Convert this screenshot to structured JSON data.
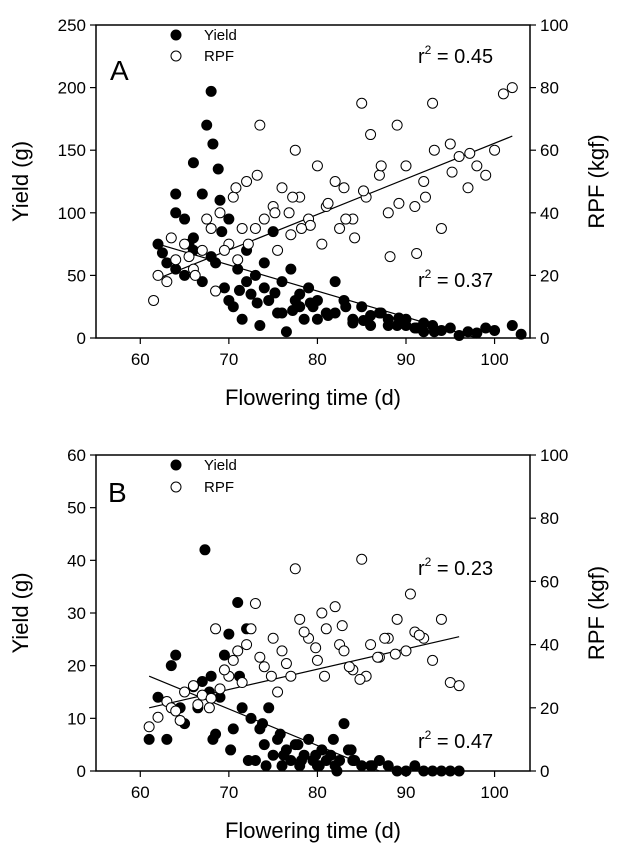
{
  "chart_data": [
    {
      "type": "scatter",
      "panel_label": "A",
      "xlabel": "Flowering time (d)",
      "ylabel": "Yield (g)",
      "y2label": "RPF (kgf)",
      "xlim": [
        55,
        104
      ],
      "ylim": [
        0,
        250
      ],
      "y2lim": [
        0,
        100
      ],
      "xticks": [
        60,
        70,
        80,
        90,
        100
      ],
      "yticks": [
        0,
        50,
        100,
        150,
        200,
        250
      ],
      "y2ticks": [
        0,
        20,
        40,
        60,
        80,
        100
      ],
      "legend": {
        "position": "top-left",
        "entries": [
          "Yield",
          "RPF"
        ]
      },
      "annotations": [
        {
          "text": "r",
          "sup": "2",
          "rest": " = 0.45",
          "series": "RPF"
        },
        {
          "text": "r",
          "sup": "2",
          "rest": " = 0.37",
          "series": "Yield"
        }
      ],
      "series": [
        {
          "name": "Yield",
          "marker": "filled-circle",
          "axis": "left",
          "x": [
            62,
            63,
            64,
            64,
            65,
            65,
            66,
            66,
            67,
            67,
            67.5,
            68,
            68.2,
            68.5,
            68.8,
            69,
            69.5,
            70,
            70.5,
            71,
            71.5,
            72,
            72.5,
            73,
            73.5,
            74,
            74.5,
            75,
            75.5,
            76,
            76.5,
            77,
            77.5,
            78,
            78.5,
            79,
            79.5,
            80,
            81,
            82,
            83,
            84,
            85,
            86,
            87,
            88,
            89,
            90,
            91,
            92,
            93,
            95,
            97,
            99,
            102,
            103,
            64,
            66,
            68,
            70,
            72,
            74,
            76,
            78,
            80,
            82,
            84,
            86,
            88,
            90,
            92,
            94,
            62.5,
            65.5,
            69.2,
            71.2,
            73.2,
            75.2,
            77.2,
            79.2,
            81.2,
            83.2,
            85.2,
            87.2,
            89.2,
            91.2,
            93.2,
            96,
            98,
            100
          ],
          "y": [
            75,
            60,
            115,
            55,
            95,
            50,
            140,
            70,
            115,
            45,
            170,
            197,
            155,
            60,
            135,
            110,
            40,
            95,
            25,
            55,
            15,
            70,
            35,
            50,
            10,
            60,
            30,
            85,
            20,
            45,
            5,
            55,
            30,
            35,
            15,
            40,
            25,
            30,
            20,
            45,
            30,
            15,
            25,
            10,
            20,
            15,
            10,
            15,
            8,
            12,
            10,
            8,
            5,
            8,
            10,
            3,
            100,
            80,
            65,
            30,
            45,
            40,
            20,
            25,
            15,
            20,
            12,
            18,
            10,
            10,
            5,
            6,
            68,
            75,
            85,
            38,
            28,
            36,
            22,
            28,
            18,
            25,
            14,
            20,
            16,
            8,
            5,
            2,
            4,
            6
          ]
        },
        {
          "name": "RPF",
          "marker": "open-circle",
          "axis": "right",
          "x": [
            61.5,
            62,
            63,
            64,
            65,
            66,
            67,
            68,
            68.5,
            69,
            70,
            70.5,
            71,
            72,
            73,
            73.5,
            74,
            75,
            75.5,
            76,
            77,
            77.5,
            78,
            79,
            80,
            80.5,
            81,
            82,
            82.5,
            83,
            84,
            85,
            85.5,
            86,
            87,
            88,
            89,
            90,
            91,
            92,
            93,
            94,
            95,
            96,
            97,
            98,
            99,
            100,
            101,
            102,
            63.5,
            65.5,
            67.5,
            69.5,
            71.5,
            73.2,
            75.2,
            77.2,
            79.2,
            81.2,
            83.2,
            85.2,
            87.2,
            89.2,
            91.2,
            93.2,
            95.2,
            97.2,
            66.2,
            72.2,
            78.2,
            84.2,
            88.2,
            92.2,
            70.8,
            76.8
          ],
          "y": [
            12,
            20,
            18,
            25,
            30,
            22,
            28,
            35,
            15,
            40,
            30,
            45,
            25,
            50,
            35,
            68,
            38,
            42,
            28,
            48,
            33,
            60,
            45,
            38,
            55,
            30,
            42,
            50,
            35,
            48,
            38,
            75,
            45,
            65,
            52,
            40,
            68,
            55,
            42,
            50,
            75,
            35,
            62,
            58,
            48,
            55,
            52,
            60,
            78,
            80,
            32,
            26,
            38,
            28,
            35,
            52,
            40,
            45,
            36,
            43,
            38,
            47,
            55,
            43,
            27,
            60,
            53,
            59,
            20,
            30,
            35,
            32,
            26,
            45,
            48,
            40
          ]
        }
      ],
      "trend_lines": [
        {
          "series": "Yield",
          "x": [
            62,
            98
          ],
          "y": [
            75,
            0
          ]
        },
        {
          "series": "RPF",
          "x": [
            62,
            102
          ],
          "y": [
            19,
            64.5
          ]
        }
      ]
    },
    {
      "type": "scatter",
      "panel_label": "B",
      "xlabel": "Flowering time (d)",
      "ylabel": "Yield (g)",
      "y2label": "RPF (kgf)",
      "xlim": [
        55,
        104
      ],
      "ylim": [
        0,
        60
      ],
      "y2lim": [
        0,
        100
      ],
      "xticks": [
        60,
        70,
        80,
        90,
        100
      ],
      "yticks": [
        0,
        10,
        20,
        30,
        40,
        50,
        60
      ],
      "y2ticks": [
        0,
        20,
        40,
        60,
        80,
        100
      ],
      "legend": {
        "position": "top-left",
        "entries": [
          "Yield",
          "RPF"
        ]
      },
      "annotations": [
        {
          "text": "r",
          "sup": "2",
          "rest": " = 0.23",
          "series": "RPF"
        },
        {
          "text": "r",
          "sup": "2",
          "rest": " = 0.47",
          "series": "Yield"
        }
      ],
      "series": [
        {
          "name": "Yield",
          "marker": "filled-circle",
          "axis": "left",
          "x": [
            61,
            62,
            63,
            63.5,
            64,
            65,
            66,
            66.5,
            67,
            67.3,
            67.8,
            68,
            68.5,
            69,
            69.5,
            70,
            70.5,
            71,
            71.2,
            71.5,
            72,
            72.5,
            73,
            73.5,
            74,
            74.5,
            75,
            75.5,
            76,
            76.5,
            77,
            77.5,
            78,
            78.5,
            79,
            79.5,
            80,
            80.5,
            81,
            81.5,
            82,
            82.5,
            83,
            83.5,
            84,
            85,
            86,
            87,
            88,
            89,
            90,
            91,
            92,
            93,
            94,
            95,
            96,
            64.5,
            68.2,
            70.2,
            72.2,
            74.2,
            76.2,
            78.2,
            80.2,
            82.2,
            84.2,
            86.2,
            73.8,
            75.8,
            77.8,
            79.8,
            81.8,
            83.8
          ],
          "y": [
            6,
            14,
            6,
            20,
            22,
            9,
            16,
            12,
            17,
            42,
            15,
            18,
            7,
            14,
            22,
            26,
            8,
            32,
            18,
            12,
            27,
            10,
            2,
            8,
            5,
            12,
            3,
            6,
            1,
            4,
            2,
            5,
            1,
            3,
            6,
            2,
            1,
            4,
            2,
            3,
            1,
            2,
            9,
            4,
            2,
            1,
            1,
            2,
            1,
            0,
            0,
            1,
            0,
            0,
            0,
            0,
            0,
            12,
            6,
            4,
            2,
            1,
            3,
            2,
            1,
            0,
            2,
            1,
            9,
            7,
            5,
            3,
            6,
            4
          ]
        },
        {
          "name": "RPF",
          "marker": "open-circle",
          "axis": "right",
          "x": [
            61,
            62,
            63,
            63.5,
            64,
            65,
            66,
            67,
            68,
            68.5,
            69,
            70,
            70.5,
            71,
            72,
            72.5,
            73,
            74,
            75,
            75.5,
            76,
            77,
            77.5,
            78,
            79,
            80,
            80.5,
            81,
            82,
            82.5,
            83,
            84,
            85,
            85.5,
            86,
            87,
            88,
            89,
            90,
            90.5,
            91,
            92,
            93,
            94,
            95,
            96,
            64.5,
            66.5,
            69.5,
            71.5,
            73.5,
            76.5,
            78.5,
            80.8,
            82.8,
            84.8,
            86.8,
            88.8,
            91.5,
            67.8,
            74.8,
            79.8,
            83.6,
            87.6
          ],
          "y": [
            14,
            17,
            22,
            20,
            19,
            25,
            27,
            24,
            23,
            45,
            26,
            30,
            35,
            38,
            40,
            45,
            53,
            33,
            42,
            25,
            38,
            30,
            64,
            48,
            42,
            35,
            50,
            45,
            52,
            40,
            38,
            32,
            67,
            30,
            40,
            36,
            42,
            48,
            38,
            56,
            44,
            42,
            35,
            48,
            28,
            27,
            16,
            21,
            32,
            28,
            36,
            34,
            44,
            30,
            46,
            29,
            36,
            37,
            43,
            20,
            30,
            39,
            33,
            42
          ]
        }
      ],
      "trend_lines": [
        {
          "series": "Yield",
          "x": [
            61,
            87
          ],
          "y": [
            18,
            0
          ]
        },
        {
          "series": "RPF",
          "x": [
            61,
            96
          ],
          "y": [
            20,
            42.5
          ]
        }
      ]
    }
  ]
}
